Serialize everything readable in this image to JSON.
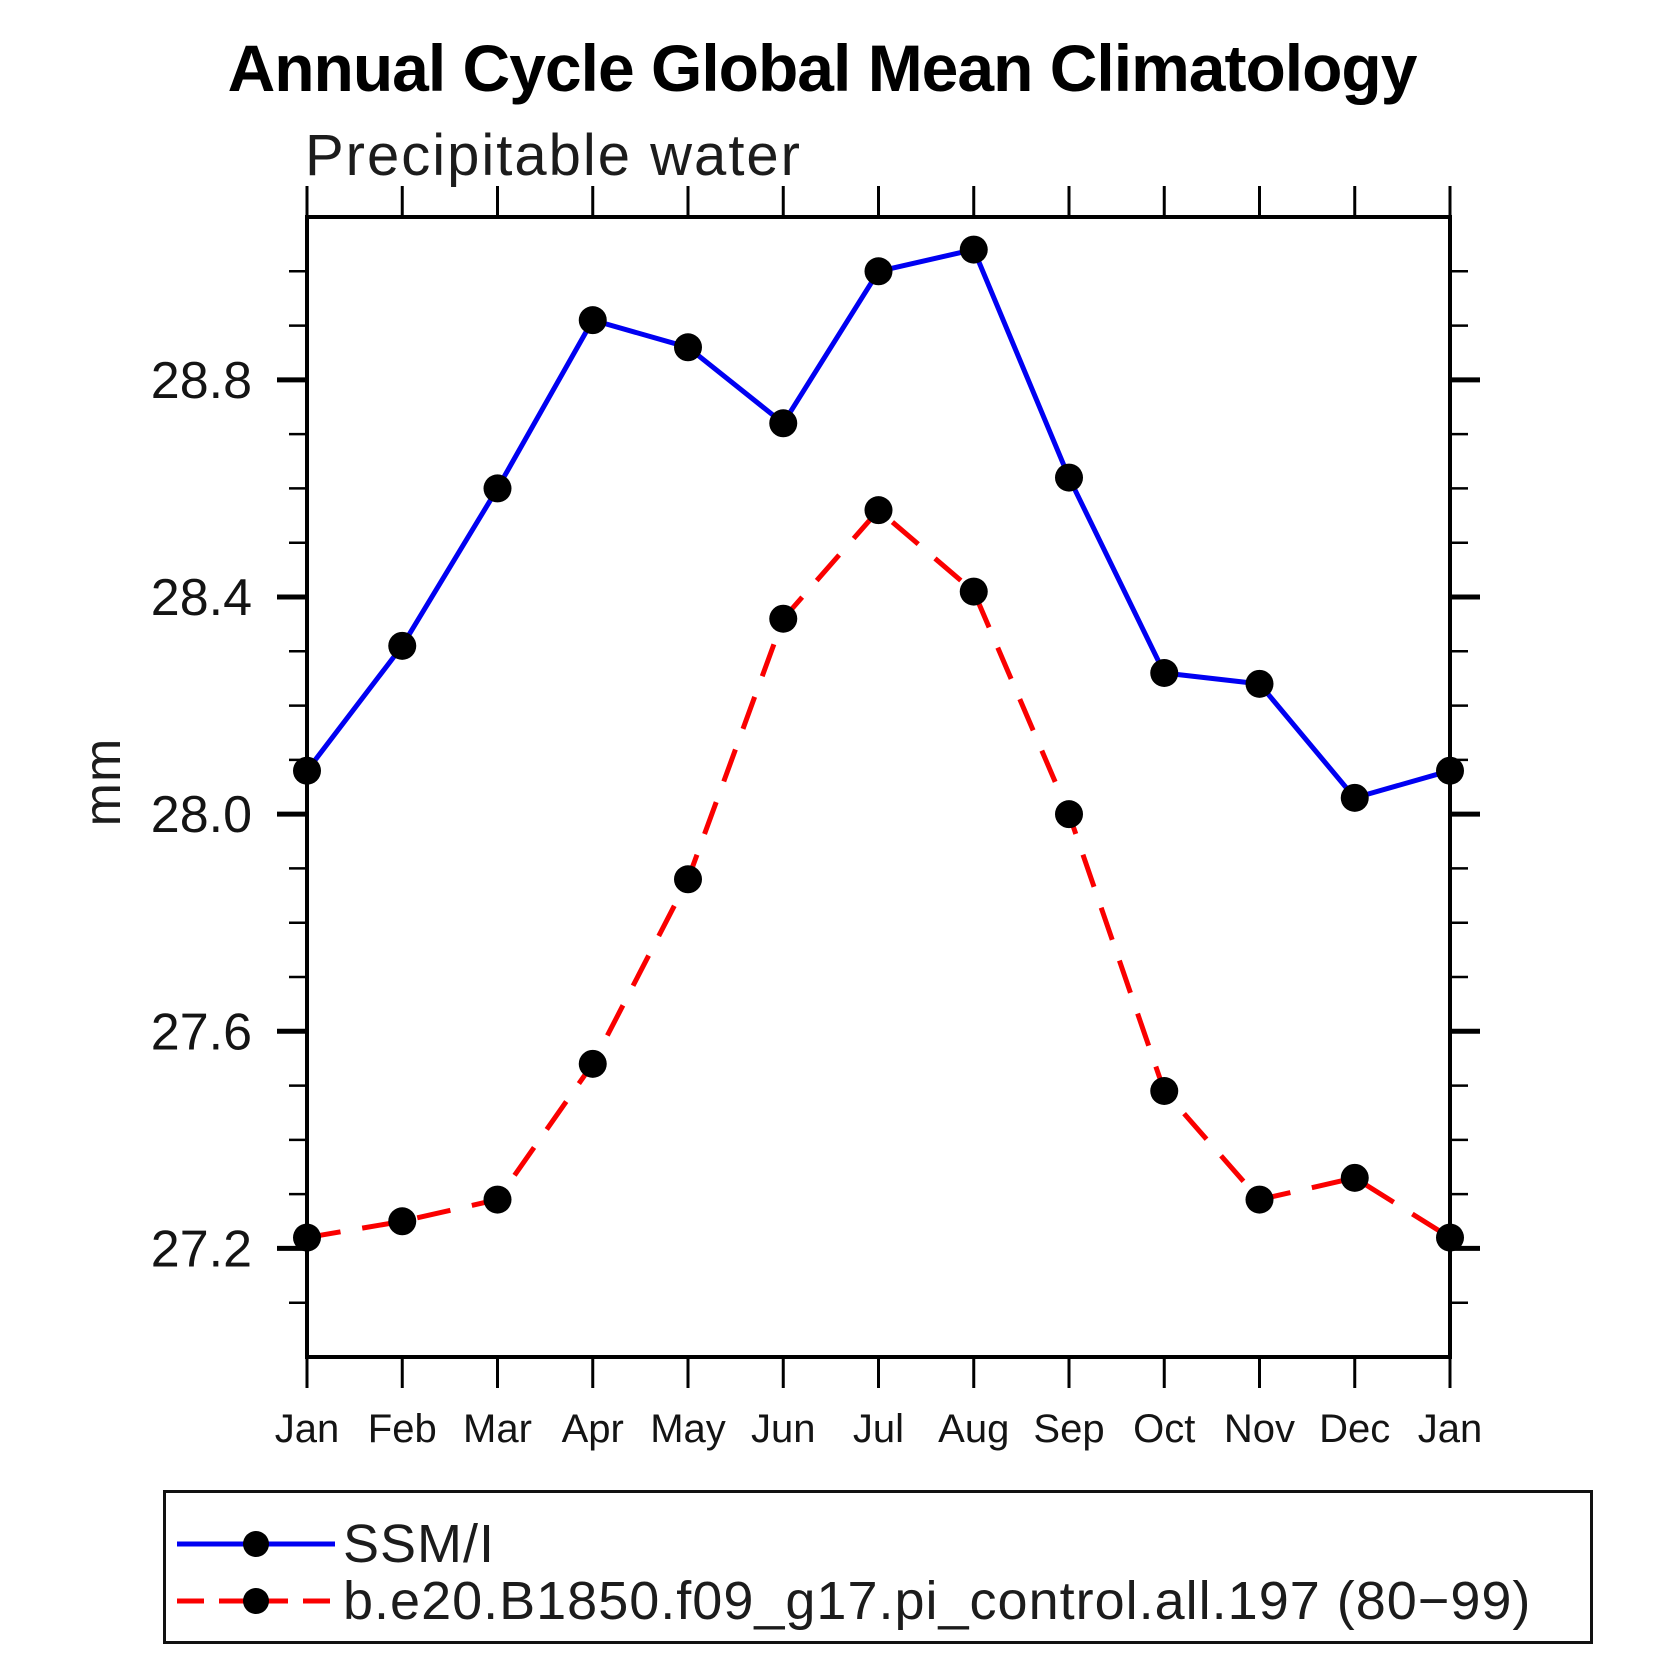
{
  "page": {
    "background": "#ffffff"
  },
  "chart_data": {
    "type": "line",
    "title": "Annual Cycle Global Mean Climatology",
    "subtitle": "Precipitable water",
    "ylabel": "mm",
    "xlabel": "",
    "categories": [
      "Jan",
      "Feb",
      "Mar",
      "Apr",
      "May",
      "Jun",
      "Jul",
      "Aug",
      "Sep",
      "Oct",
      "Nov",
      "Dec",
      "Jan"
    ],
    "ylim": [
      27.0,
      29.1
    ],
    "ytick_major": [
      27.2,
      27.6,
      28.0,
      28.4,
      28.8
    ],
    "ytick_major_labels": [
      "27.2",
      "27.6",
      "28.0",
      "28.4",
      "28.8"
    ],
    "ytick_minor_step": 0.1,
    "grid": false,
    "legend_position": "bottom",
    "axis_color": "#000000",
    "marker_color": "#000000",
    "series": [
      {
        "name": "SSM/I",
        "color": "#0000f2",
        "line_style": "solid",
        "marker": "circle",
        "values": [
          28.08,
          28.31,
          28.6,
          28.91,
          28.86,
          28.72,
          29.0,
          29.04,
          28.62,
          28.26,
          28.24,
          28.03,
          28.08
        ]
      },
      {
        "name": "b.e20.B1850.f09_g17.pi_control.all.197 (80−99)",
        "color": "#fa0000",
        "line_style": "dashed",
        "marker": "circle",
        "values": [
          27.22,
          27.25,
          27.29,
          27.54,
          27.88,
          28.36,
          28.56,
          28.41,
          28.0,
          27.49,
          27.29,
          27.33,
          27.22
        ]
      }
    ]
  }
}
